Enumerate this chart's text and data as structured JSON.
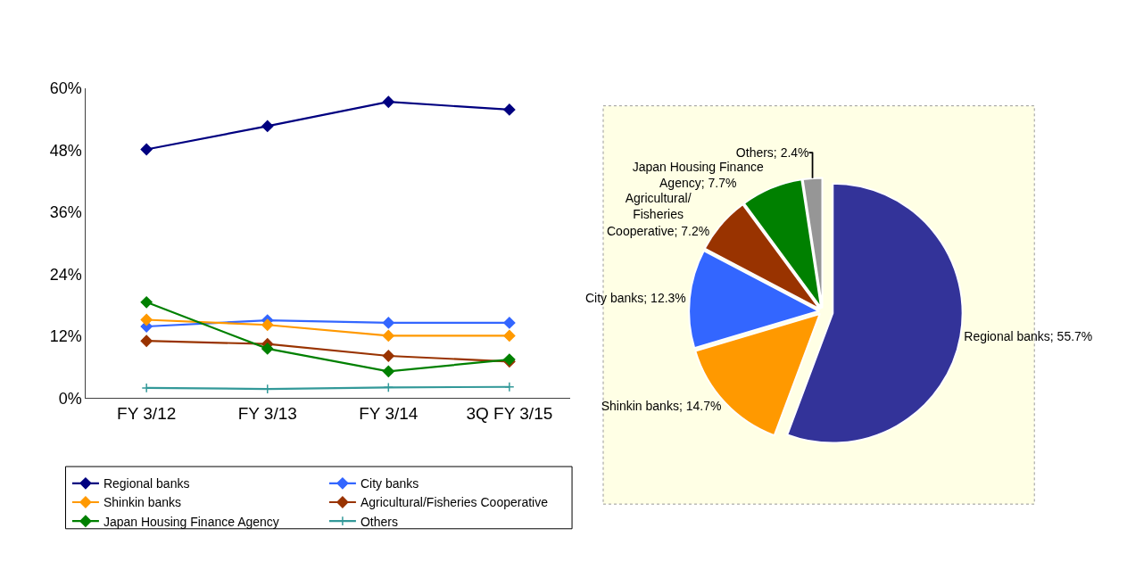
{
  "chart_data": [
    {
      "type": "line",
      "categories": [
        "FY 3/12",
        "FY 3/13",
        "FY 3/14",
        "3Q FY 3/15"
      ],
      "ylim": [
        0,
        60
      ],
      "yticks": [
        {
          "value": 0,
          "label": "0%"
        },
        {
          "value": 12,
          "label": "12%"
        },
        {
          "value": 24,
          "label": "24%"
        },
        {
          "value": 36,
          "label": "36%"
        },
        {
          "value": 48,
          "label": "48%"
        },
        {
          "value": 60,
          "label": "60%"
        }
      ],
      "legend": "bottom",
      "marker": "diamond",
      "series": [
        {
          "name": "Regional banks",
          "color": "#000080",
          "values": [
            48.2,
            52.7,
            57.4,
            55.9
          ]
        },
        {
          "name": "City banks",
          "color": "#3366ff",
          "values": [
            13.9,
            15.1,
            14.6,
            14.6
          ]
        },
        {
          "name": "Shinkin banks",
          "color": "#ff9900",
          "values": [
            15.2,
            14.2,
            12.1,
            12.1
          ]
        },
        {
          "name": "Agricultural/Fisheries Cooperative",
          "color": "#993300",
          "values": [
            11.1,
            10.5,
            8.2,
            7.1
          ]
        },
        {
          "name": "Japan Housing Finance Agency",
          "color": "#008000",
          "values": [
            18.6,
            9.6,
            5.2,
            7.5
          ]
        },
        {
          "name": "Others",
          "color": "#339999",
          "marker": "cross",
          "values": [
            2.0,
            1.8,
            2.1,
            2.2
          ]
        }
      ]
    },
    {
      "type": "pie",
      "categories": [
        "Regional banks",
        "Shinkin banks",
        "City banks",
        "Agricultural/Fisheries Cooperative",
        "Japan Housing Finance Agency",
        "Others"
      ],
      "values": [
        55.7,
        14.7,
        12.3,
        7.2,
        7.7,
        2.4
      ],
      "value_labels": [
        "55.7%",
        "14.7%",
        "12.3%",
        "7.2%",
        "7.7%",
        "2.4%"
      ],
      "colors": [
        "#333399",
        "#ff9900",
        "#3366ff",
        "#993300",
        "#008000",
        "#969696"
      ]
    }
  ]
}
